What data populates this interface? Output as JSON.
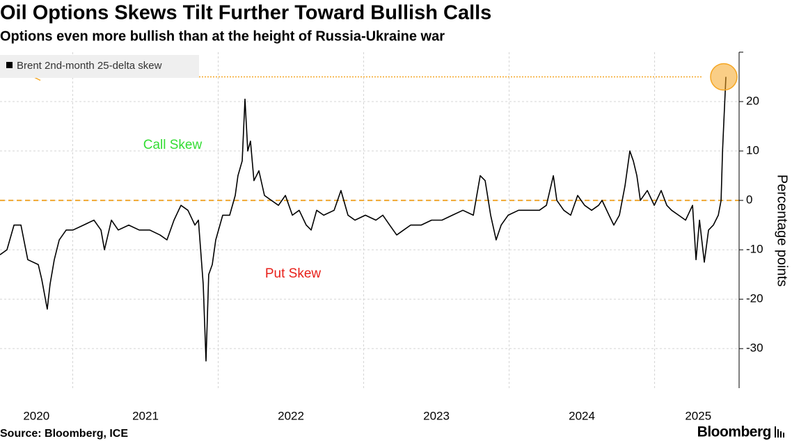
{
  "chart_data": {
    "type": "line",
    "title": "Oil Options Skews Tilt Further Toward Bullish Calls",
    "subtitle": "Options even more bullish than at the height of Russia-Ukraine war",
    "y_label": "Percentage points",
    "source": "Source: Bloomberg, ICE",
    "brand": "Bloomberg",
    "x": [
      2020.5,
      2020.548,
      2020.596,
      2020.644,
      2020.691,
      2020.763,
      2020.787,
      2020.825,
      2020.844,
      2020.873,
      2020.907,
      2020.955,
      2021.002,
      2021.074,
      2021.146,
      2021.194,
      2021.218,
      2021.266,
      2021.313,
      2021.385,
      2021.457,
      2021.529,
      2021.6,
      2021.648,
      2021.696,
      2021.744,
      2021.792,
      2021.84,
      2021.864,
      2021.897,
      2021.916,
      2021.935,
      2021.959,
      2021.983,
      2022.031,
      2022.079,
      2022.117,
      2022.136,
      2022.165,
      2022.184,
      2022.203,
      2022.222,
      2022.246,
      2022.28,
      2022.318,
      2022.366,
      2022.414,
      2022.462,
      2022.51,
      2022.557,
      2022.605,
      2022.639,
      2022.677,
      2022.725,
      2022.797,
      2022.844,
      2022.892,
      2022.94,
      2023.012,
      2023.084,
      2023.132,
      2023.179,
      2023.227,
      2023.275,
      2023.323,
      2023.395,
      2023.467,
      2023.538,
      2023.61,
      2023.682,
      2023.754,
      2023.801,
      2023.835,
      2023.873,
      2023.911,
      2023.945,
      2023.993,
      2024.065,
      2024.136,
      2024.208,
      2024.256,
      2024.304,
      2024.328,
      2024.376,
      2024.423,
      2024.471,
      2024.519,
      2024.567,
      2024.615,
      2024.639,
      2024.687,
      2024.72,
      2024.758,
      2024.797,
      2024.83,
      2024.854,
      2024.878,
      2024.902,
      2024.95,
      2024.998,
      2025.045,
      2025.084,
      2025.117,
      2025.165,
      2025.213,
      2025.261,
      2025.285,
      2025.309,
      2025.342,
      2025.371,
      2025.404,
      2025.438,
      2025.457,
      2025.467,
      2025.476,
      2025.49
    ],
    "series": [
      {
        "name": "Brent 2nd-month 25-delta skew",
        "color": "#000000",
        "values": [
          -11,
          -10,
          -5,
          -5,
          -12,
          -13,
          -16,
          -22,
          -17,
          -12,
          -8,
          -6,
          -6,
          -5,
          -4,
          -6,
          -10,
          -4,
          -6,
          -5,
          -6,
          -6,
          -7,
          -8,
          -4,
          -1,
          -2,
          -5,
          -4,
          -17,
          -32.5,
          -15,
          -13,
          -8,
          -3,
          -3,
          1,
          5,
          8,
          20.5,
          10,
          12,
          4,
          6,
          1,
          0,
          -1,
          1,
          -3,
          -2,
          -5,
          -6,
          -2,
          -3,
          -2,
          2,
          -3,
          -4,
          -3,
          -4,
          -3,
          -5,
          -7,
          -6,
          -5,
          -5,
          -4,
          -4,
          -3,
          -2,
          -3,
          5,
          4,
          -3,
          -8,
          -5,
          -3,
          -2,
          -2,
          -2,
          -1,
          5,
          0,
          -2,
          -3,
          1,
          -1,
          -2,
          -1,
          0,
          -3,
          -5,
          -3,
          3,
          10,
          8,
          5,
          0,
          2,
          -1,
          2,
          -1,
          -2,
          -3,
          -4,
          -1,
          -12,
          -4,
          -12.5,
          -6,
          -5,
          -3,
          0,
          10,
          16,
          25
        ]
      }
    ],
    "xlim": [
      2020.5,
      2025.581
    ],
    "xticks": [
      {
        "value": 2020.75,
        "label": "2020"
      },
      {
        "value": 2021.5,
        "label": "2021"
      },
      {
        "value": 2022.5,
        "label": "2022"
      },
      {
        "value": 2023.5,
        "label": "2023"
      },
      {
        "value": 2024.5,
        "label": "2024"
      },
      {
        "value": 2025.3,
        "label": "2025"
      }
    ],
    "xgrid": [
      2021,
      2022,
      2023,
      2024,
      2025
    ],
    "ylim": [
      -38,
      30
    ],
    "yticks": [
      20,
      10,
      0,
      -10,
      -20,
      -30
    ],
    "grid": true,
    "reference_line": {
      "value": 0,
      "color": "#f0a830"
    },
    "annotations": [
      {
        "text": "Call Skew",
        "color": "#33dd33"
      },
      {
        "text": "Put Skew",
        "color": "#e8201a"
      }
    ],
    "highlight_color": "#f5a623",
    "legend": "top-left"
  }
}
